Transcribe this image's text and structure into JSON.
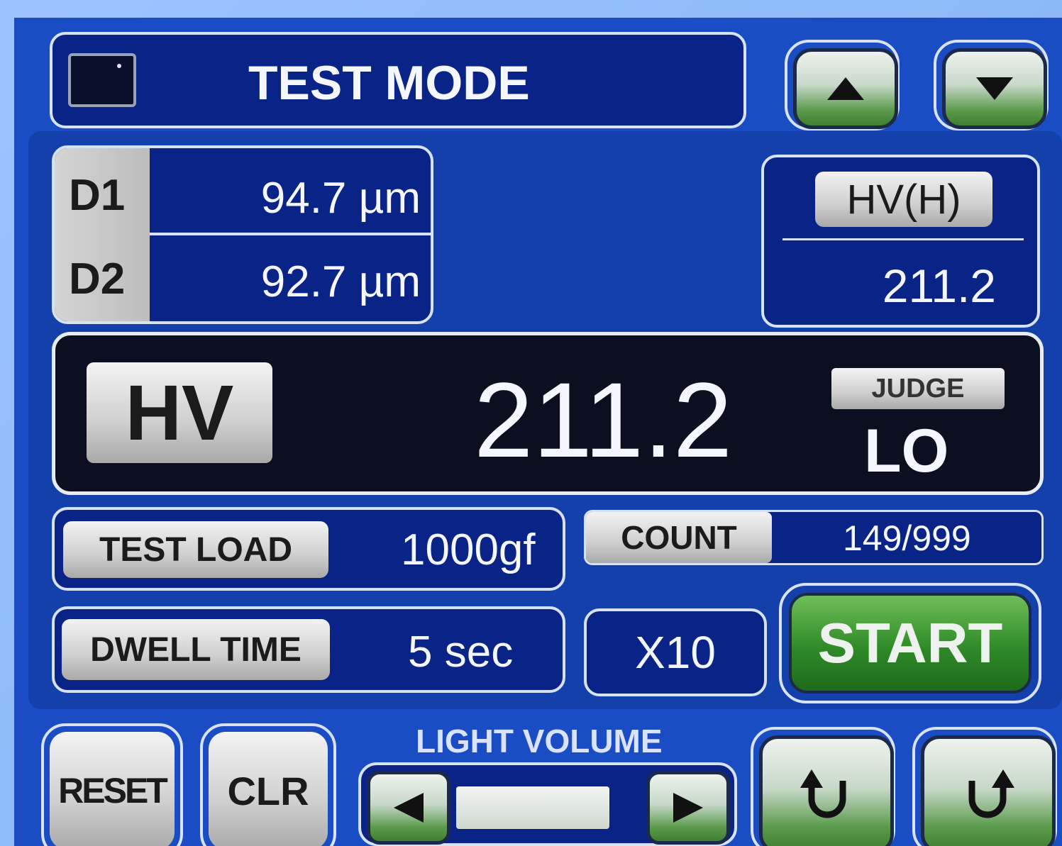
{
  "header": {
    "title": "TEST MODE"
  },
  "diagonals": [
    {
      "label": "D1",
      "value": "94.7 µm"
    },
    {
      "label": "D2",
      "value": "92.7 µm"
    }
  ],
  "converted": {
    "label": "HV(H)",
    "value": "211.2"
  },
  "result": {
    "scale": "HV",
    "value": "211.2",
    "judge_label": "JUDGE",
    "judge": "LO"
  },
  "settings": {
    "test_load": {
      "label": "TEST LOAD",
      "value": "1000gf"
    },
    "count": {
      "label": "COUNT",
      "value": "149/999"
    },
    "dwell_time": {
      "label": "DWELL TIME",
      "value": "5 sec"
    },
    "magnification": "X10"
  },
  "actions": {
    "start": "START",
    "reset": "RESET",
    "clear": "CLR"
  },
  "light_volume": {
    "label": "LIGHT VOLUME"
  }
}
